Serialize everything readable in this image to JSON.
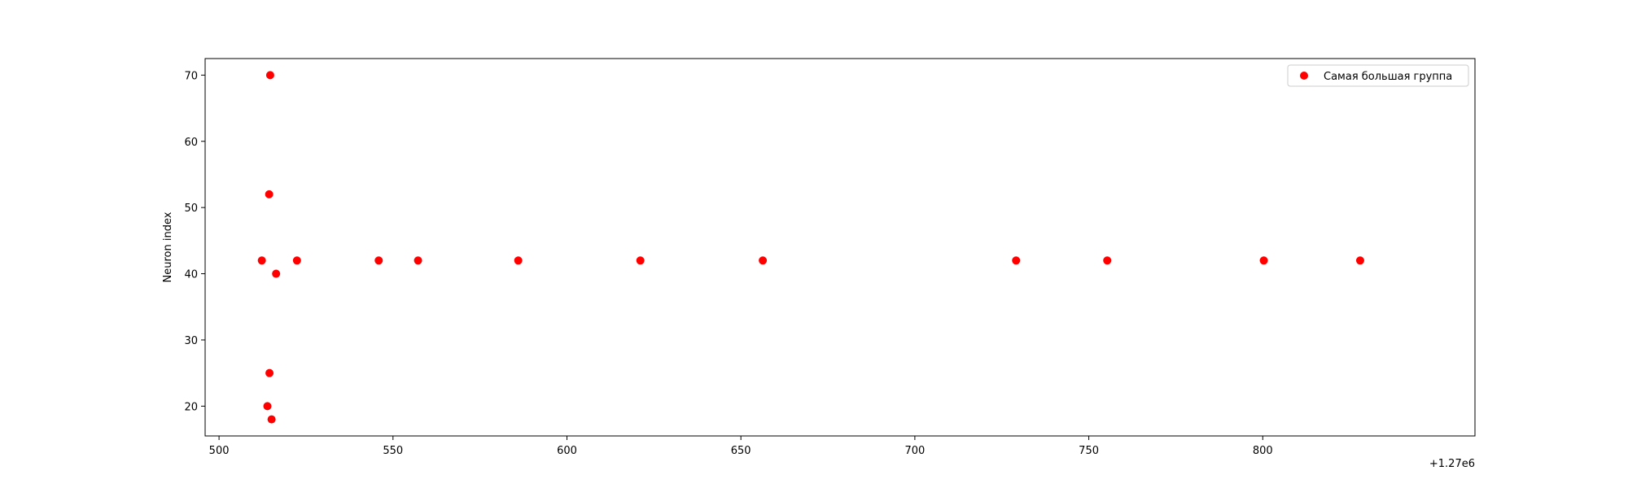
{
  "chart_data": {
    "type": "scatter",
    "title": "",
    "xlabel": "",
    "ylabel": "Neuron index",
    "x_offset_label": "+1.27e6",
    "xlim": [
      496,
      861
    ],
    "ylim": [
      15.5,
      72.5
    ],
    "x_ticks": [
      500,
      550,
      600,
      650,
      700,
      750,
      800
    ],
    "y_ticks": [
      20,
      30,
      40,
      50,
      60,
      70
    ],
    "grid": false,
    "legend_position": "top-right",
    "series": [
      {
        "name": "Самая большая группа",
        "color": "#ff0000",
        "points": [
          {
            "x": 512.3,
            "y": 42
          },
          {
            "x": 513.9,
            "y": 20
          },
          {
            "x": 514.4,
            "y": 52
          },
          {
            "x": 514.5,
            "y": 25
          },
          {
            "x": 514.7,
            "y": 70
          },
          {
            "x": 515.1,
            "y": 18
          },
          {
            "x": 516.4,
            "y": 40
          },
          {
            "x": 522.4,
            "y": 42
          },
          {
            "x": 545.9,
            "y": 42
          },
          {
            "x": 557.2,
            "y": 42
          },
          {
            "x": 586.0,
            "y": 42
          },
          {
            "x": 621.1,
            "y": 42
          },
          {
            "x": 656.3,
            "y": 42
          },
          {
            "x": 729.1,
            "y": 42
          },
          {
            "x": 755.3,
            "y": 42
          },
          {
            "x": 800.3,
            "y": 42
          },
          {
            "x": 828.0,
            "y": 42
          }
        ]
      }
    ]
  }
}
